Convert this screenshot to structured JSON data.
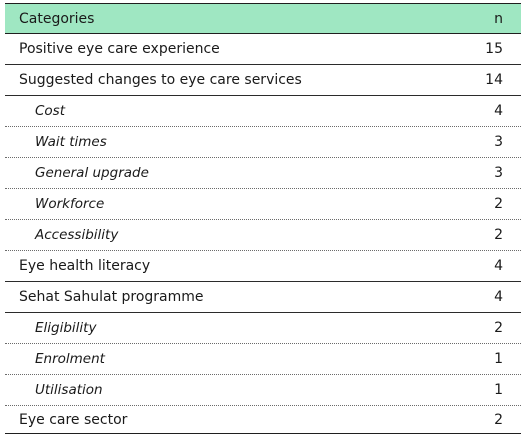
{
  "table": {
    "header": {
      "category": "Categories",
      "n": "n"
    },
    "rows": [
      {
        "label": "Positive eye care experience",
        "n": "15",
        "level": "main"
      },
      {
        "label": "Suggested changes to eye care services",
        "n": "14",
        "level": "main"
      },
      {
        "label": "Cost",
        "n": "4",
        "level": "sub"
      },
      {
        "label": "Wait times",
        "n": "3",
        "level": "sub"
      },
      {
        "label": "General upgrade",
        "n": "3",
        "level": "sub"
      },
      {
        "label": "Workforce",
        "n": "2",
        "level": "sub"
      },
      {
        "label": "Accessibility",
        "n": "2",
        "level": "sub"
      },
      {
        "label": "Eye health literacy",
        "n": "4",
        "level": "main"
      },
      {
        "label": "Sehat Sahulat programme",
        "n": "4",
        "level": "main"
      },
      {
        "label": "Eligibility",
        "n": "2",
        "level": "sub"
      },
      {
        "label": "Enrolment",
        "n": "1",
        "level": "sub"
      },
      {
        "label": "Utilisation",
        "n": "1",
        "level": "sub"
      },
      {
        "label": "Eye care sector",
        "n": "2",
        "level": "main"
      }
    ],
    "colors": {
      "header_bg": "#9fe7c2",
      "rule": "#1f1f1f"
    }
  }
}
